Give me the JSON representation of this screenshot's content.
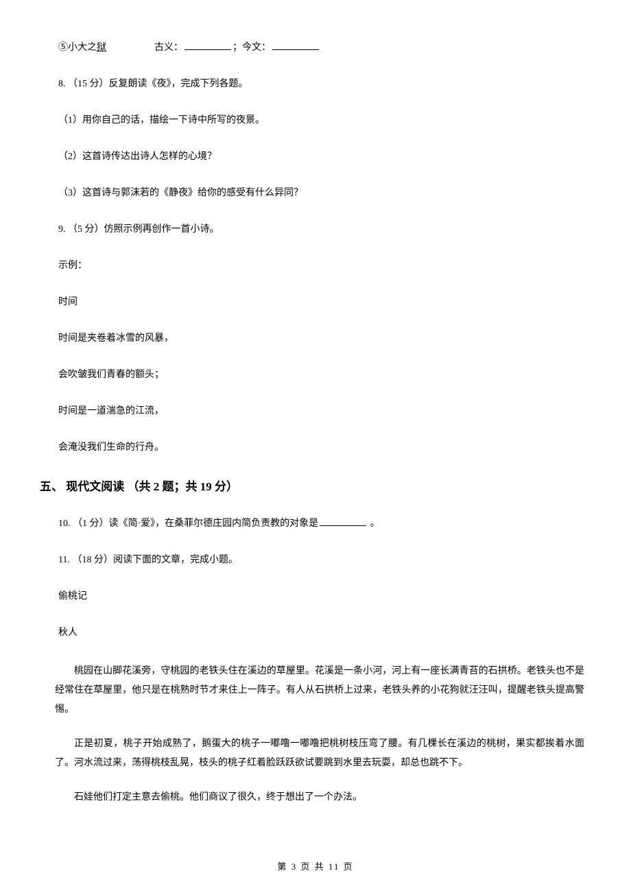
{
  "q_item5": {
    "prefix": "⑤小大之",
    "underlined": "狱",
    "gap": "　　　　　",
    "old_label": "古义：",
    "new_label": "；今文："
  },
  "q8": {
    "header": "8. （15 分）反复朗读《夜》，完成下列各题。",
    "sub1": "（1）用你自己的话，描绘一下诗中所写的夜景。",
    "sub2": "（2）这首诗传达出诗人怎样的心境？",
    "sub3": "（3）这首诗与郭沫若的《静夜》给你的感受有什么异同？"
  },
  "q9": {
    "header": "9. （5 分）仿照示例再创作一首小诗。",
    "example_label": "示例：",
    "title": "时间",
    "l1": "时间是夹卷着冰雪的风暴，",
    "l2": "会吹皱我们青春的额头；",
    "l3": "时间是一道湍急的江流，",
    "l4": "会淹没我们生命的行舟。"
  },
  "section5": {
    "title": "五、 现代文阅读 （共 2 题；共 19 分）"
  },
  "q10": {
    "prefix": "10. （1 分）读《简·爱》，在桑菲尔德庄园内简负责教的对象是",
    "suffix": " 。"
  },
  "q11": {
    "header": "11. （18 分）阅读下面的文章，完成小题。",
    "title": "偷桃记",
    "author": "秋人",
    "p1": "桃园在山脚花溪旁，守桃园的老铁头住在溪边的草屋里。花溪是一条小河，河上有一座长满青苔的石拱桥。老铁头也不是经常住在草屋里，他只是在桃熟时节才来住上一阵子。有人从石拱桥上过来，老铁头养的小花狗就汪汪叫，提醒老铁头提高警惕。",
    "p2": "正是初夏，桃子开始成熟了，鹅蛋大的桃子一嘟噜一嘟噜把桃树枝压弯了腰。有几棵长在溪边的桃树，果实都挨着水面了。河水流过来，荡得桃枝乱晃，枝头的桃子红着脸跃跃欲试要跳到水里去玩耍，却总也跳不下。",
    "p3": "石娃他们打定主意去偷桃。他们商议了很久，终于想出了一个办法。"
  },
  "footer": {
    "text": "第 3 页 共 11 页"
  }
}
